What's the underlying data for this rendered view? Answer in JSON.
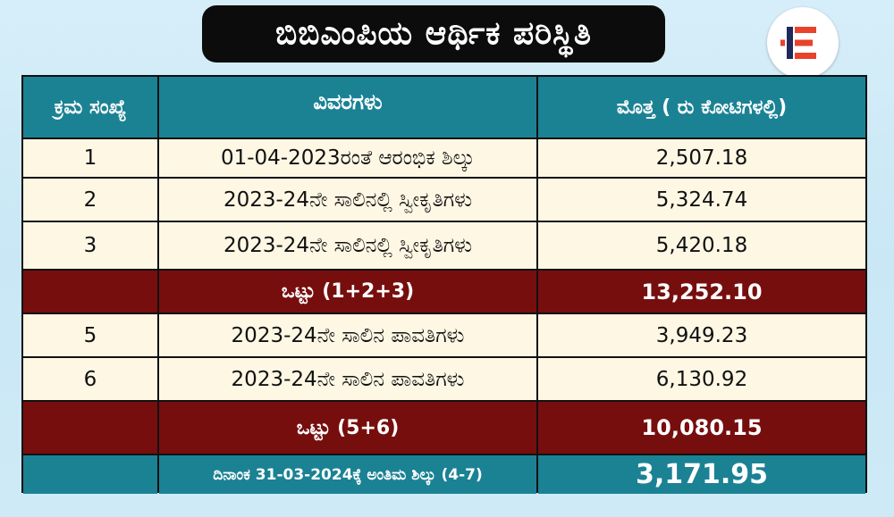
{
  "title": "ಬಿಬಿಎಂಪಿಯ ಆರ್ಥಿಕ ಪರಿಸ್ಥಿತಿ",
  "logo_icon": "brand-e-logo",
  "colors": {
    "header": "#1b8294",
    "total_row": "#770e0e",
    "data_row": "#fdf7e4",
    "title_bg": "#0c0c0c",
    "logo_red": "#e8412c",
    "logo_navy": "#1f2a5a"
  },
  "table": {
    "headers": [
      "ಕ್ರಮ ಸಂಖ್ಯೆ",
      "ವಿವರಗಳು",
      "ಮೊತ್ತ ( ರು ಕೋಟಿಗಳಲ್ಲಿ)"
    ],
    "rows": [
      {
        "kind": "data",
        "num": "1",
        "desc": "01-04-2023ರಂತೆ ಆರಂಭಿಕ ಶಿಲ್ಕು",
        "amount": "2,507.18"
      },
      {
        "kind": "data",
        "num": "2",
        "desc": "2023-24ನೇ ಸಾಲಿನಲ್ಲಿ ಸ್ವೀಕೃತಿಗಳು",
        "amount": "5,324.74"
      },
      {
        "kind": "data",
        "num": "3",
        "desc": "2023-24ನೇ ಸಾಲಿನಲ್ಲಿ ಸ್ವೀಕೃತಿಗಳು",
        "amount": "5,420.18"
      },
      {
        "kind": "total",
        "num": "",
        "desc": "ಒಟ್ಟು (1+2+3)",
        "amount": "13,252.10"
      },
      {
        "kind": "data",
        "num": "5",
        "desc": "2023-24ನೇ ಸಾಲಿನ ಪಾವತಿಗಳು",
        "amount": "3,949.23"
      },
      {
        "kind": "data",
        "num": "6",
        "desc": "2023-24ನೇ ಸಾಲಿನ ಪಾವತಿಗಳು",
        "amount": "6,130.92"
      },
      {
        "kind": "total",
        "num": "",
        "desc": "ಒಟ್ಟು (5+6)",
        "amount": "10,080.15"
      },
      {
        "kind": "final",
        "num": "",
        "desc": "ದಿನಾಂಕ 31-03-2024ಕ್ಕೆ ಅಂತಿಮ ಶಿಲ್ಕು (4-7)",
        "amount": "3,171.95"
      }
    ]
  }
}
